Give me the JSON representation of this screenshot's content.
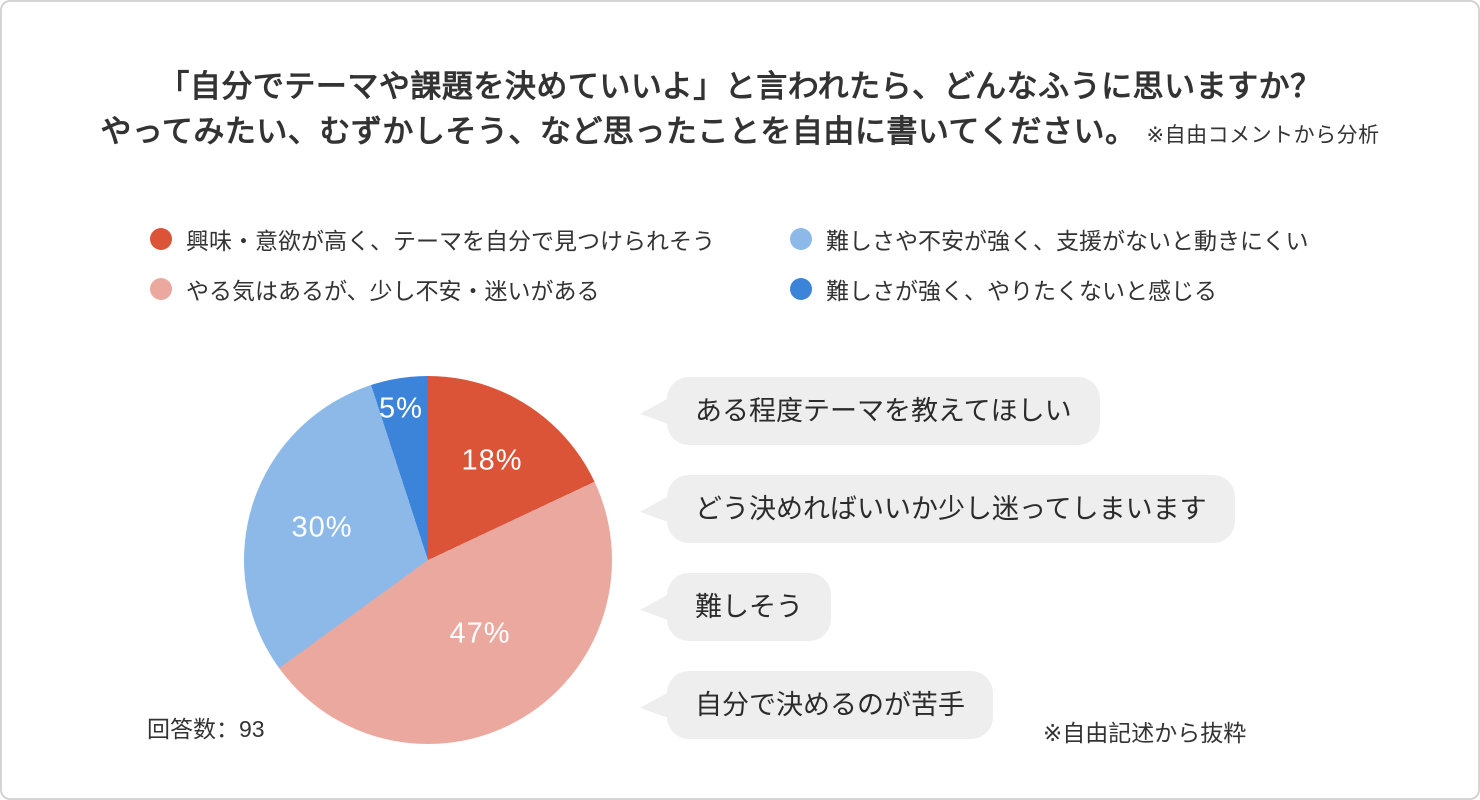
{
  "title": {
    "line1": "「自分でテーマや課題を決めていいよ」と言われたら、どんなふうに思いますか？",
    "line2": "やってみたい、むずかしそう、など思ったことを自由に書いてください。",
    "note": "※自由コメントから分析"
  },
  "legend": {
    "items": [
      {
        "label": "興味・意欲が高く、テーマを自分で見つけられそう",
        "color": "#DC5438"
      },
      {
        "label": "やる気はあるが、少し不安・迷いがある",
        "color": "#EBA89E"
      },
      {
        "label": "難しさや不安が強く、支援がないと動きにくい",
        "color": "#8CB9E8"
      },
      {
        "label": "難しさが強く、やりたくないと感じる",
        "color": "#3C84DA"
      }
    ]
  },
  "chart_data": {
    "type": "pie",
    "title": "「自分でテーマや課題を決めていいよ」と言われたら、どんなふうに思いますか？",
    "categories": [
      "興味・意欲が高く、テーマを自分で見つけられそう",
      "やる気はあるが、少し不安・迷いがある",
      "難しさや不安が強く、支援がないと動きにくい",
      "難しさが強く、やりたくないと感じる"
    ],
    "values": [
      18,
      47,
      30,
      5
    ],
    "unit": "%",
    "labels": [
      "18%",
      "47%",
      "30%",
      "5%"
    ],
    "colors": [
      "#DC5438",
      "#EBA89E",
      "#8CB9E8",
      "#3C84DA"
    ],
    "start_angle_deg": 0,
    "direction": "clockwise",
    "legend_position": "top",
    "sample_size": 93
  },
  "bubbles": [
    {
      "text": "ある程度テーマを教えてほしい"
    },
    {
      "text": "どう決めればいいか少し迷ってしまいます"
    },
    {
      "text": "難しそう"
    },
    {
      "text": "自分で決めるのが苦手"
    }
  ],
  "footer": {
    "respondents_label": "回答数：93",
    "excerpt_note": "※自由記述から抜粋"
  }
}
